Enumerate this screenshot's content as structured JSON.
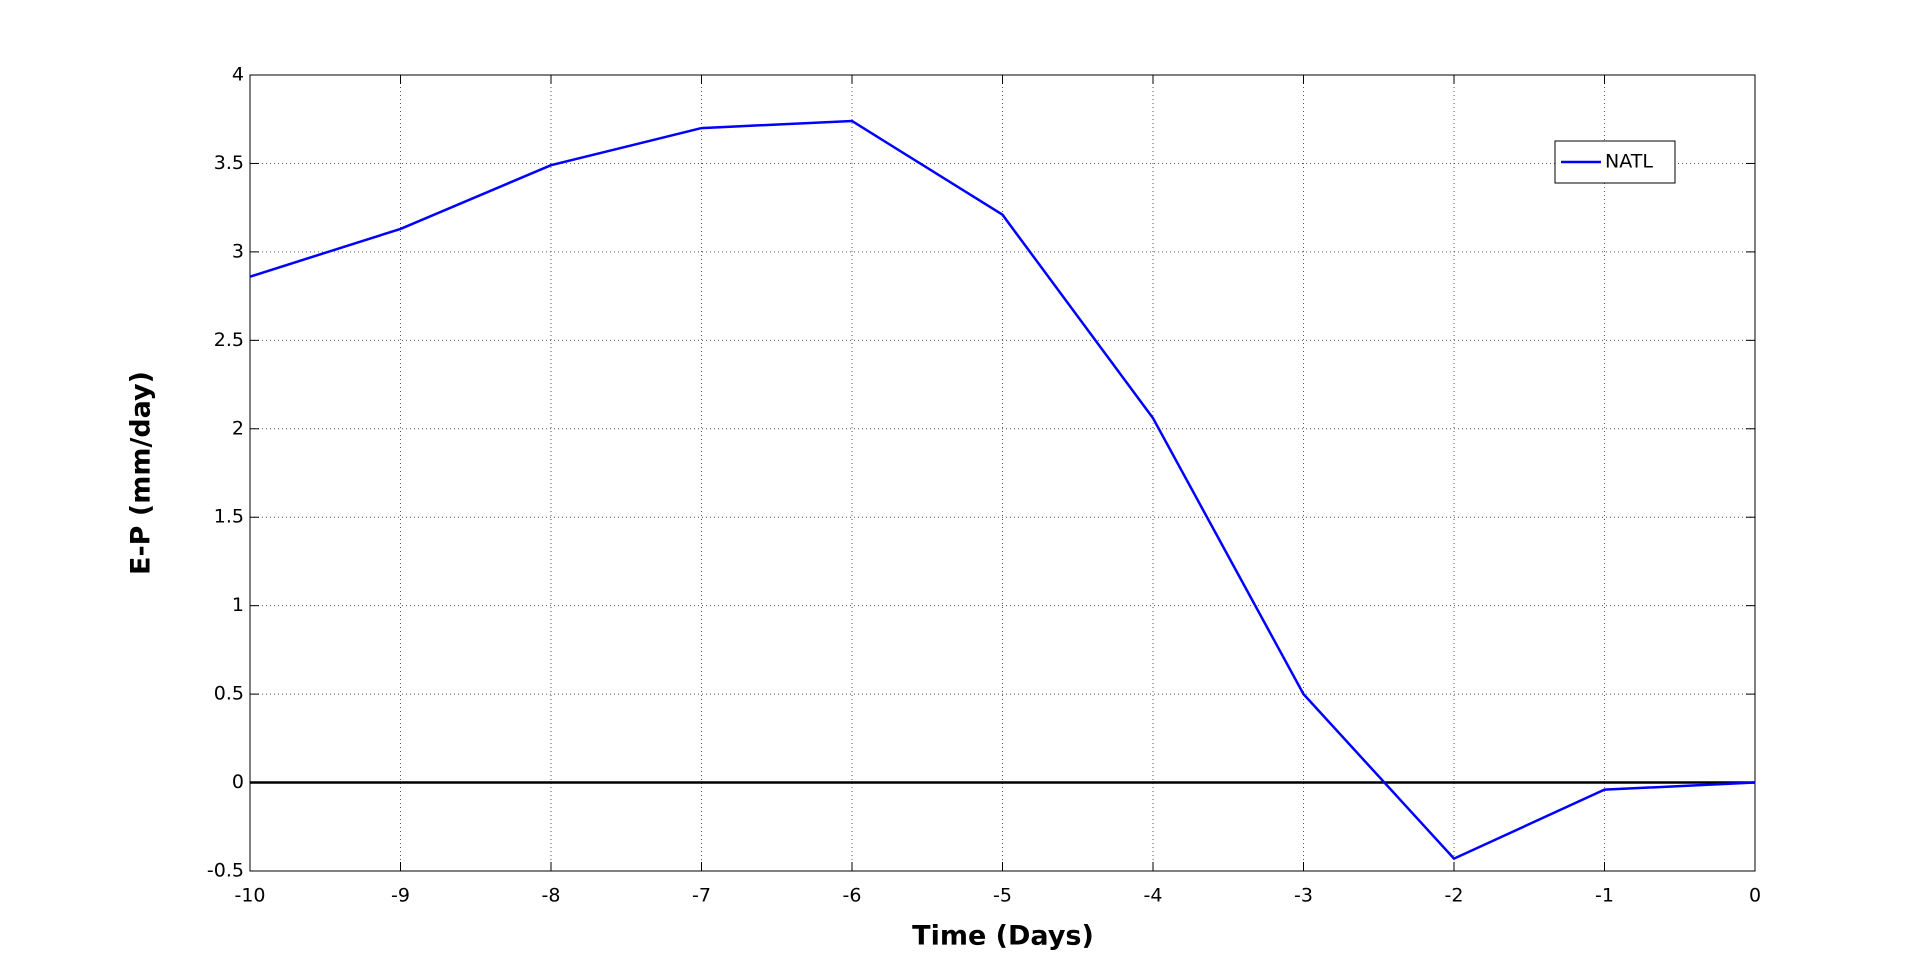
{
  "chart_data": {
    "type": "line",
    "x_label": "Time (Days)",
    "y_label": "E-P (mm/day)",
    "x": [
      -10,
      -9,
      -8,
      -7,
      -6,
      -5,
      -4,
      -3,
      -2,
      -1,
      0
    ],
    "series": [
      {
        "name": "NATL",
        "color": "#0000ff",
        "values": [
          2.86,
          3.13,
          3.49,
          3.7,
          3.74,
          3.21,
          2.06,
          0.5,
          -0.43,
          -0.04,
          0
        ]
      }
    ],
    "xlim": [
      -10,
      0
    ],
    "xticks": [
      -10,
      -9,
      -8,
      -7,
      -6,
      -5,
      -4,
      -3,
      -2,
      -1,
      0
    ],
    "ylim": [
      -0.5,
      4
    ],
    "yticks": [
      -0.5,
      0,
      0.5,
      1,
      1.5,
      2,
      2.5,
      3,
      3.5,
      4
    ],
    "hline": 0,
    "hline_color": "#000000",
    "grid": true,
    "legend": "upper right"
  }
}
